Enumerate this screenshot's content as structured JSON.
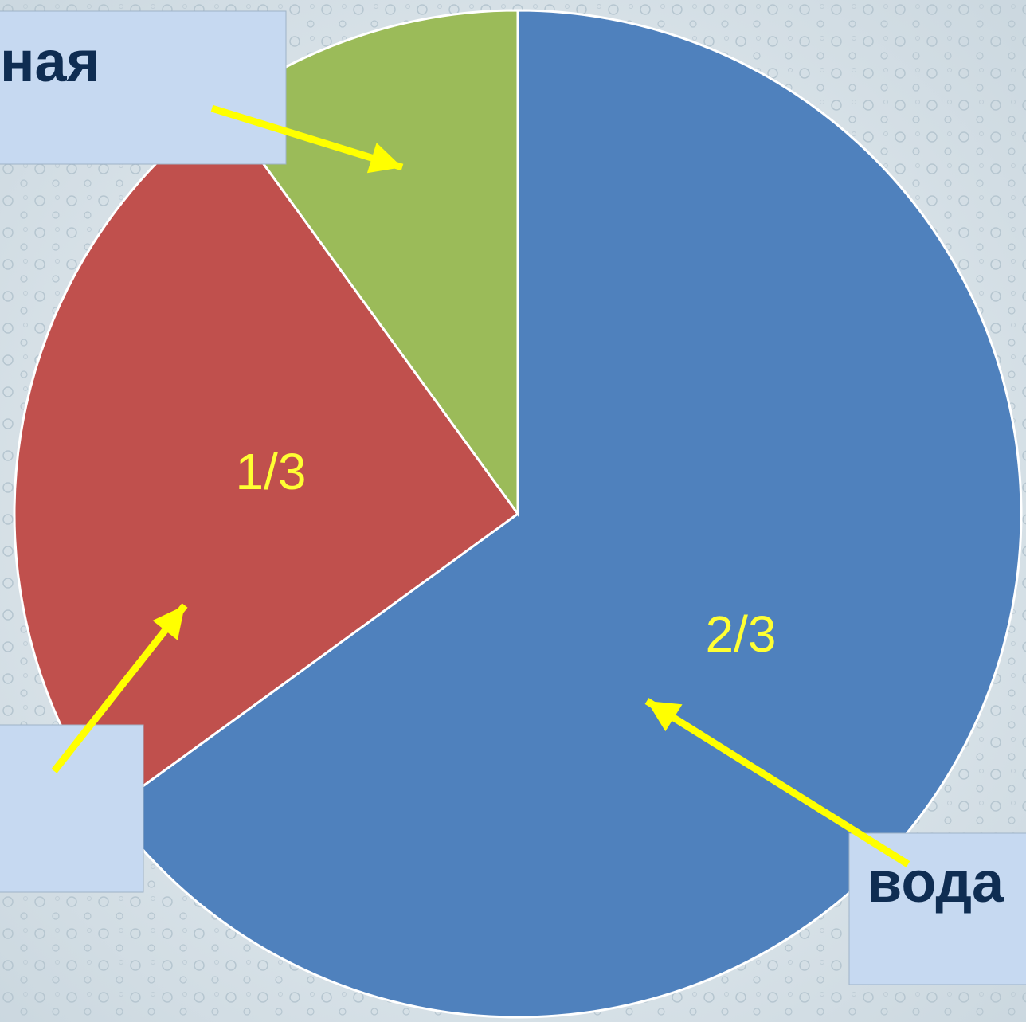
{
  "chart_data": {
    "type": "pie",
    "categories": [
      "вода",
      null,
      "ная"
    ],
    "values": [
      65,
      25,
      10
    ],
    "colors": [
      "#4f81bd",
      "#c0504d",
      "#9bbb59"
    ],
    "annotations": [
      "2/3",
      "1/3"
    ]
  }
}
